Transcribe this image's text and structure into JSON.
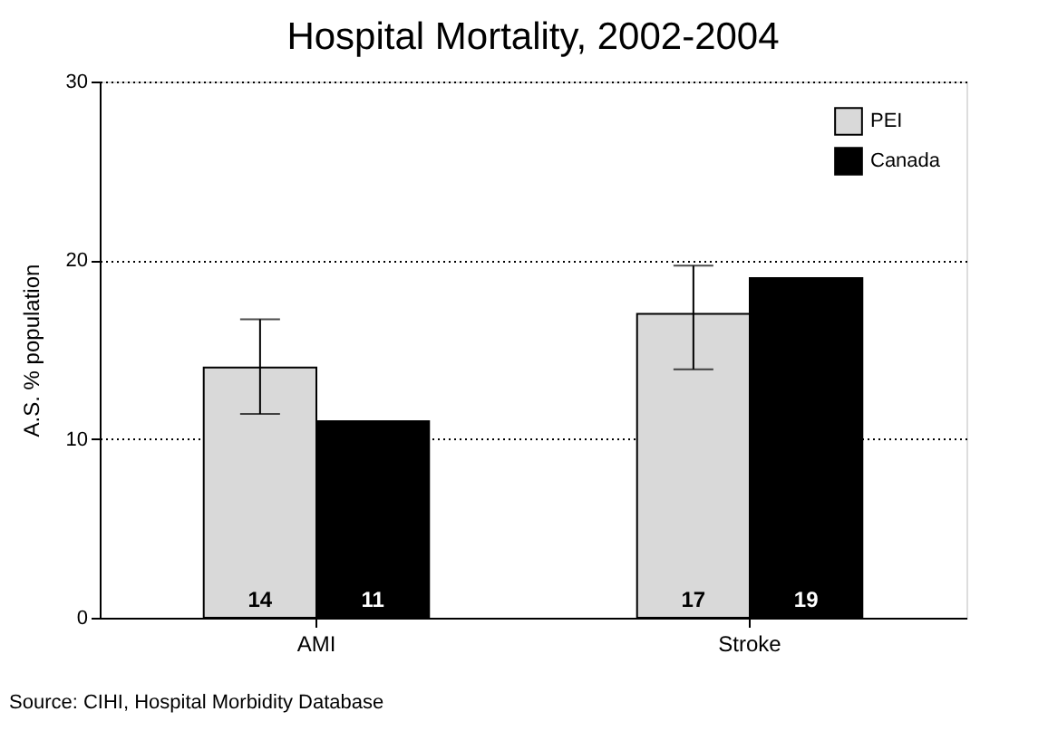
{
  "chart_data": {
    "type": "bar",
    "title": "Hospital Mortality, 2002-2004",
    "ylabel": "A.S. % population",
    "categories": [
      "AMI",
      "Stroke"
    ],
    "series": [
      {
        "name": "PEI",
        "color": "#d9d9d9",
        "values": [
          14,
          17
        ],
        "errors": [
          [
            11.4,
            16.7
          ],
          [
            13.9,
            19.7
          ]
        ]
      },
      {
        "name": "Canada",
        "color": "#000000",
        "values": [
          11,
          19
        ]
      }
    ],
    "ylim": [
      0,
      30
    ],
    "yticks": [
      0,
      10,
      20,
      30
    ],
    "grid": "y",
    "line_style": "dotted",
    "legend": "top right",
    "data_labels": true,
    "annotations": [
      "Source: CIHI, Hospital Morbidity Database"
    ]
  }
}
